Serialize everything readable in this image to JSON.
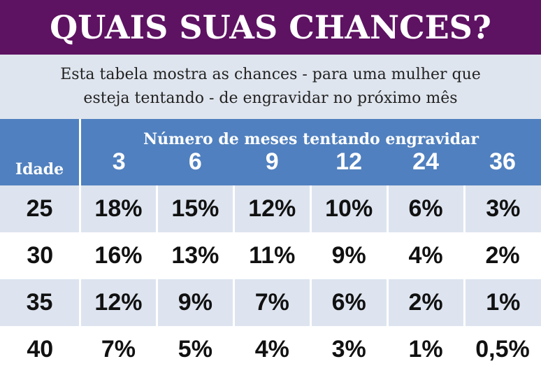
{
  "title": "QUAIS SUAS CHANCES?",
  "subtitle": {
    "line1": "Esta tabela mostra as chances - para uma mulher que",
    "line2": "esteja tentando - de engravidar no próximo mês"
  },
  "table": {
    "age_header": "Idade",
    "months_header": "Número de meses tentando engravidar",
    "months": [
      "3",
      "6",
      "9",
      "12",
      "24",
      "36"
    ],
    "rows": [
      {
        "age": "25",
        "values": [
          "18%",
          "15%",
          "12%",
          "10%",
          "6%",
          "3%"
        ]
      },
      {
        "age": "30",
        "values": [
          "16%",
          "13%",
          "11%",
          "9%",
          "4%",
          "2%"
        ]
      },
      {
        "age": "35",
        "values": [
          "12%",
          "9%",
          "7%",
          "6%",
          "2%",
          "1%"
        ]
      },
      {
        "age": "40",
        "values": [
          "7%",
          "5%",
          "4%",
          "3%",
          "1%",
          "0,5%"
        ]
      }
    ]
  },
  "colors": {
    "title_bg": "#5e1262",
    "header_bg": "#5080bf",
    "shade_row": "#dde4ef"
  }
}
